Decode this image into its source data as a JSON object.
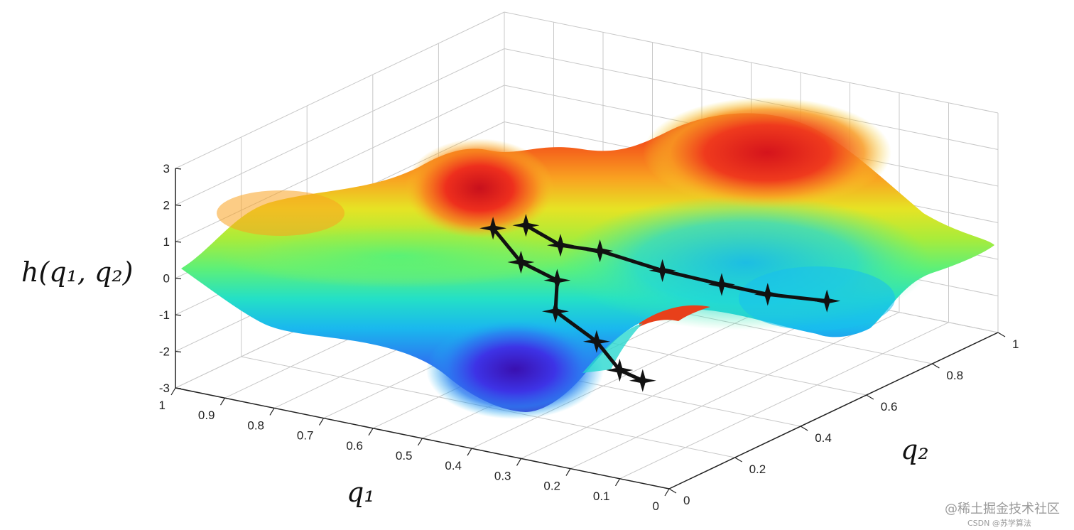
{
  "chart_data": {
    "type": "surface",
    "title": "",
    "zlabel": "h(q₁, q₂)",
    "xlabel": "q₁",
    "ylabel": "q₂",
    "zlim": [
      -3,
      3
    ],
    "xlim": [
      0,
      1
    ],
    "ylim": [
      0,
      1
    ],
    "z_ticks": [
      "3",
      "2",
      "1",
      "0",
      "-1",
      "-2",
      "-3"
    ],
    "q1_ticks": [
      "1",
      "0.9",
      "0.8",
      "0.7",
      "0.6",
      "0.5",
      "0.4",
      "0.3",
      "0.2",
      "0.1",
      "0"
    ],
    "q2_ticks": [
      "0",
      "0.2",
      "0.4",
      "0.6",
      "0.8",
      "1"
    ],
    "grid": true,
    "colormap": "jet",
    "paths": [
      {
        "points": [
          [
            0.47,
            0.17,
            2.1
          ],
          [
            0.46,
            0.24,
            0.9
          ],
          [
            0.42,
            0.29,
            0.3
          ],
          [
            0.45,
            0.33,
            -0.8
          ],
          [
            0.4,
            0.38,
            -1.7
          ],
          [
            0.38,
            0.42,
            -2.6
          ],
          [
            0.36,
            0.46,
            -3.0
          ]
        ]
      },
      {
        "points": [
          [
            0.41,
            0.18,
            2.3
          ],
          [
            0.4,
            0.27,
            1.4
          ],
          [
            0.36,
            0.33,
            1.1
          ],
          [
            0.3,
            0.43,
            0.3
          ],
          [
            0.24,
            0.52,
            -0.3
          ],
          [
            0.2,
            0.6,
            -0.8
          ],
          [
            0.14,
            0.69,
            -1.2
          ]
        ]
      }
    ]
  },
  "watermark": {
    "line1": "@稀土掘金技术社区",
    "line2": "CSDN @苏学算法"
  },
  "colors": {
    "grid": "#c8c8c8",
    "axis": "#222222",
    "path": "#111111"
  }
}
